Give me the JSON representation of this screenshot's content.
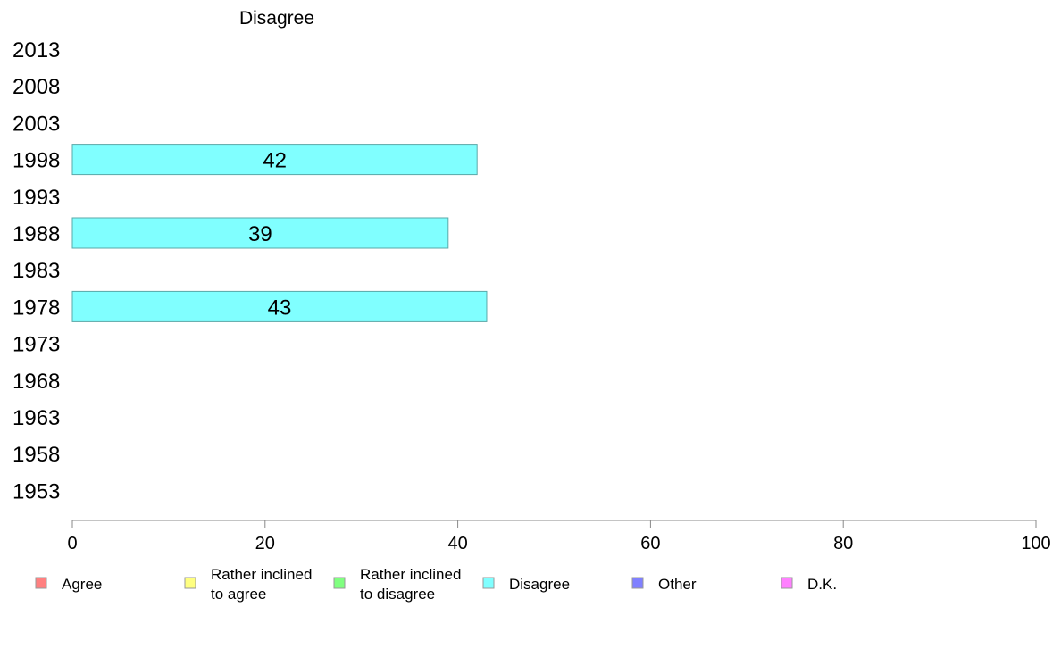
{
  "chart_data": {
    "type": "bar",
    "orientation": "horizontal",
    "title": "Disagree",
    "categories": [
      "2013",
      "2008",
      "2003",
      "1998",
      "1993",
      "1988",
      "1983",
      "1978",
      "1973",
      "1968",
      "1963",
      "1958",
      "1953"
    ],
    "series": [
      {
        "name": "Disagree",
        "color": "#80ffff",
        "values": [
          null,
          null,
          null,
          42,
          null,
          39,
          null,
          43,
          null,
          null,
          null,
          null,
          null
        ]
      }
    ],
    "xlim": [
      0,
      100
    ],
    "xticks": [
      0,
      20,
      40,
      60,
      80,
      100
    ],
    "grid": false,
    "legend": {
      "placement": "bottom",
      "items": [
        {
          "lines": [
            "Agree"
          ],
          "color": "#ff8080"
        },
        {
          "lines": [
            "Rather inclined",
            "to agree"
          ],
          "color": "#ffff80"
        },
        {
          "lines": [
            "Rather inclined",
            "to disagree"
          ],
          "color": "#80ff80"
        },
        {
          "lines": [
            "Disagree"
          ],
          "color": "#80ffff"
        },
        {
          "lines": [
            "Other"
          ],
          "color": "#8080ff"
        },
        {
          "lines": [
            "D.K."
          ],
          "color": "#ff80ff"
        }
      ]
    }
  }
}
